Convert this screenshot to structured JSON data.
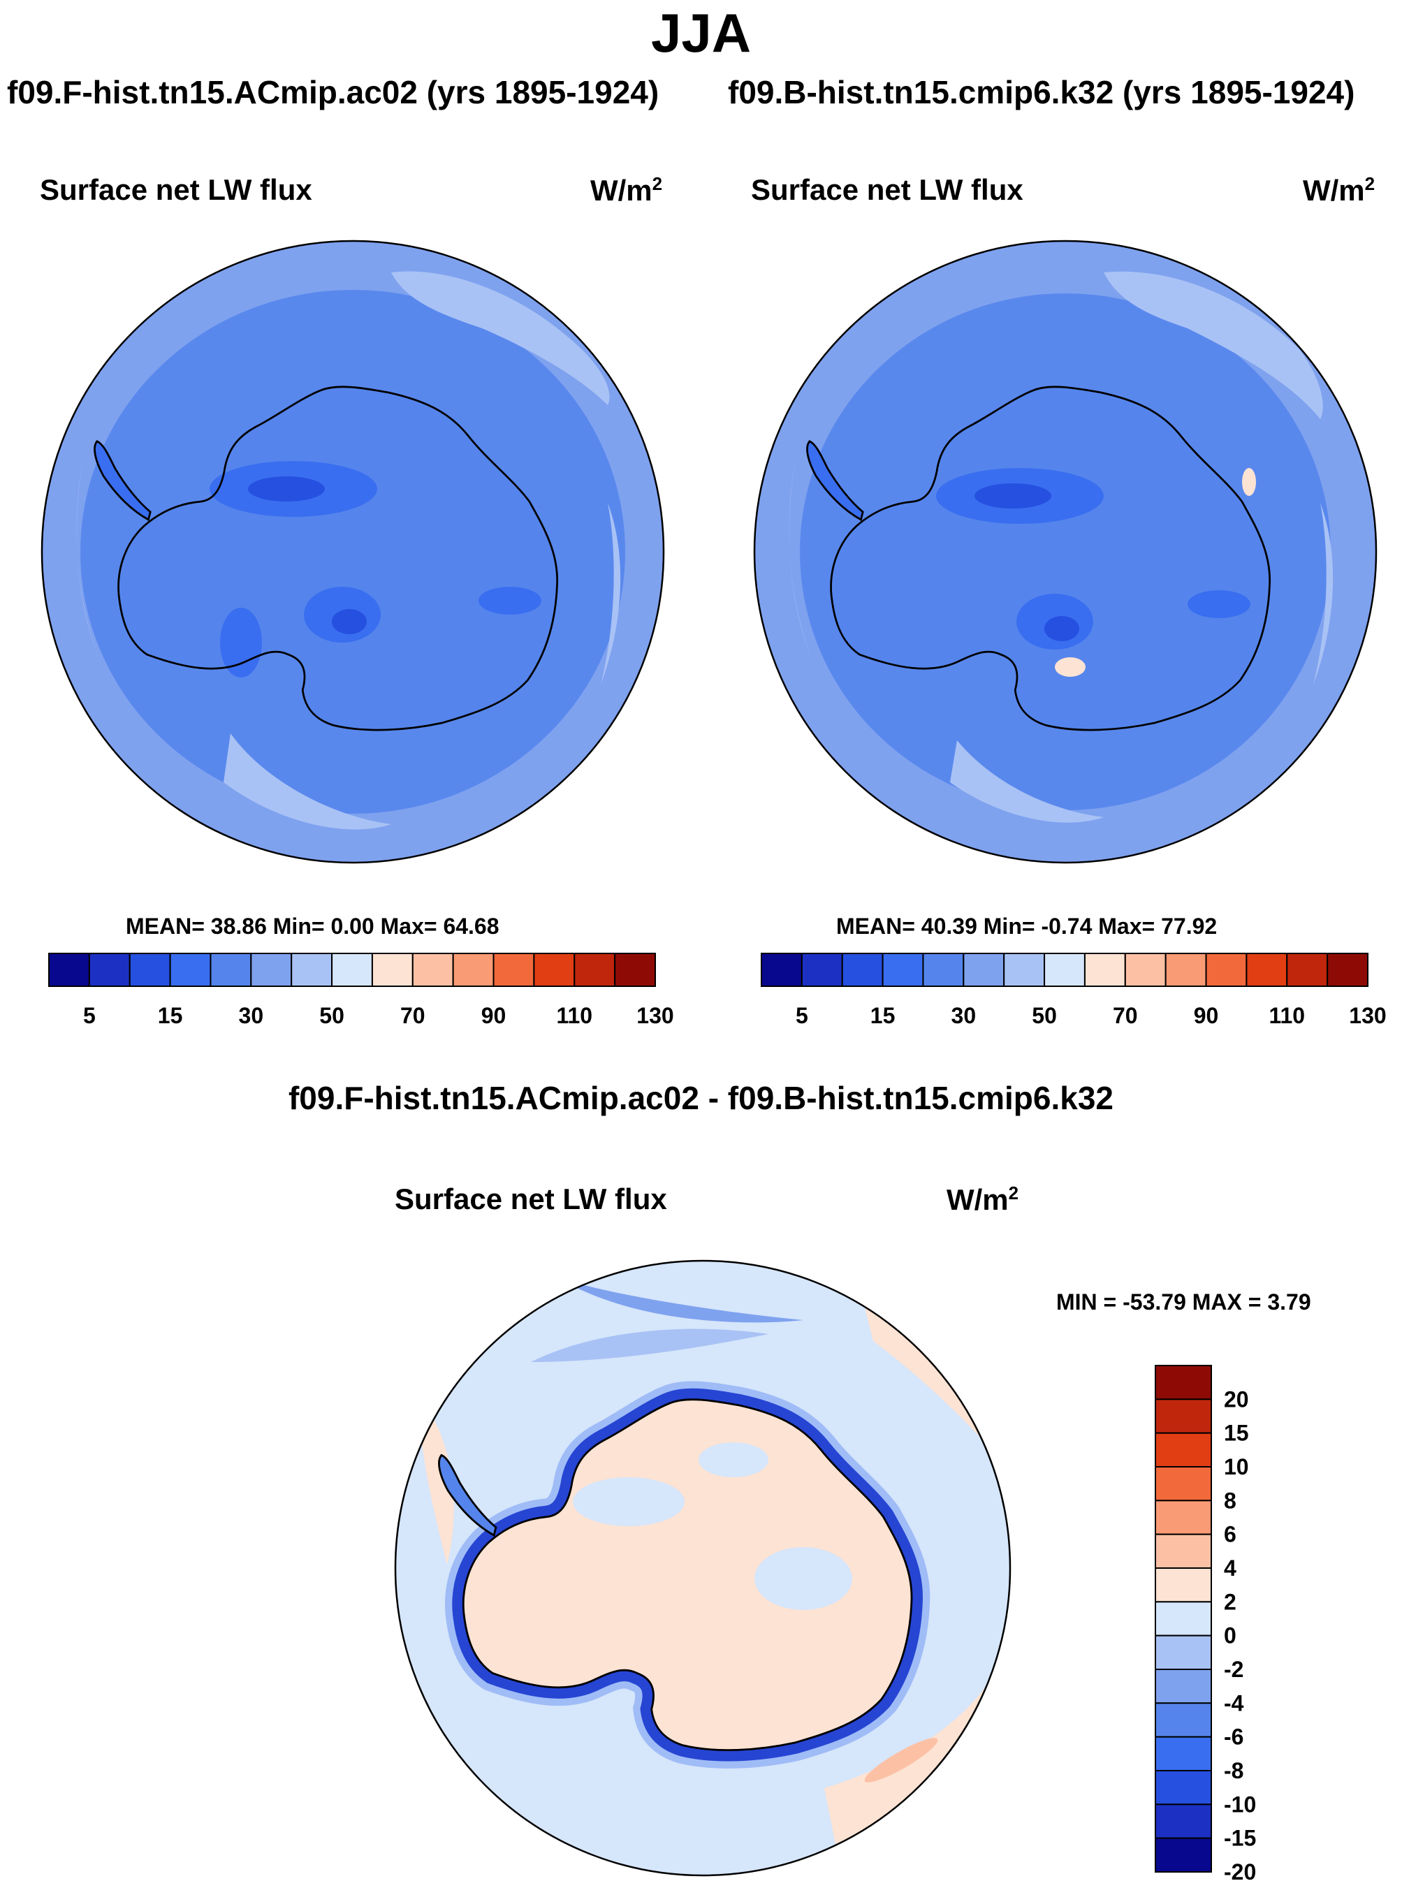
{
  "figure": {
    "season": "JJA",
    "left_run": "f09.F-hist.tn15.ACmip.ac02 (yrs 1895-1924)",
    "right_run": "f09.B-hist.tn15.cmip6.k32 (yrs 1895-1924)",
    "diff_title": "f09.F-hist.tn15.ACmip.ac02 - f09.B-hist.tn15.cmip6.k32"
  },
  "panels": {
    "left": {
      "variable": "Surface net LW flux",
      "units": "W/m",
      "units_exp": "2",
      "stats": "MEAN=  38.86  Min=   0.00  Max=  64.68"
    },
    "right": {
      "variable": "Surface net LW flux",
      "units": "W/m",
      "units_exp": "2",
      "stats": "MEAN=  40.39  Min=  -0.74  Max=  77.92"
    },
    "diff": {
      "variable": "Surface net LW flux",
      "units": "W/m",
      "units_exp": "2",
      "stats": "MIN = -53.79 MAX =   3.79"
    }
  },
  "colors": {
    "abs_scale": [
      "#08088f",
      "#1c31c3",
      "#2550e0",
      "#3a6ef0",
      "#5585ec",
      "#7fa2ef",
      "#a9c2f5",
      "#d6e6fb",
      "#fde3d3",
      "#fcc1a5",
      "#f99b74",
      "#f2693b",
      "#e23e14",
      "#c0260c",
      "#8e0b05"
    ],
    "diff_scale": [
      "#08088f",
      "#1c31c3",
      "#2550e0",
      "#3a6ef0",
      "#5585ec",
      "#7fa2ef",
      "#a9c2f5",
      "#d6e6fb",
      "#fde3d3",
      "#fcc1a5",
      "#f99b74",
      "#f2693b",
      "#e23e14",
      "#c0260c",
      "#8e0b05"
    ],
    "coast": "#000000"
  },
  "chart_data": [
    {
      "type": "heatmap",
      "projection": "south-polar stereographic",
      "title": "Surface net LW flux",
      "subtitle": "f09.F-hist.tn15.ACmip.ac02 (yrs 1895-1924)",
      "units": "W/m^2",
      "mean": 38.86,
      "min": 0.0,
      "max": 64.68,
      "colorbar_levels": [
        5,
        10,
        15,
        20,
        30,
        40,
        50,
        60,
        70,
        80,
        90,
        100,
        110,
        120
      ],
      "colorbar_labels": [
        "5",
        "15",
        "30",
        "50",
        "70",
        "90",
        "110",
        "130"
      ]
    },
    {
      "type": "heatmap",
      "projection": "south-polar stereographic",
      "title": "Surface net LW flux",
      "subtitle": "f09.B-hist.tn15.cmip6.k32 (yrs 1895-1924)",
      "units": "W/m^2",
      "mean": 40.39,
      "min": -0.74,
      "max": 77.92,
      "colorbar_levels": [
        5,
        10,
        15,
        20,
        30,
        40,
        50,
        60,
        70,
        80,
        90,
        100,
        110,
        120
      ],
      "colorbar_labels": [
        "5",
        "15",
        "30",
        "50",
        "70",
        "90",
        "110",
        "130"
      ]
    },
    {
      "type": "heatmap",
      "projection": "south-polar stereographic",
      "title": "Surface net LW flux",
      "subtitle": "f09.F-hist.tn15.ACmip.ac02 - f09.B-hist.tn15.cmip6.k32",
      "units": "W/m^2",
      "min": -53.79,
      "max": 3.79,
      "colorbar_levels": [
        -20,
        -15,
        -10,
        -8,
        -6,
        -4,
        -2,
        0,
        2,
        4,
        6,
        8,
        10,
        15,
        20
      ],
      "colorbar_labels": [
        "20",
        "15",
        "10",
        "8",
        "6",
        "4",
        "2",
        "0",
        "-2",
        "-4",
        "-6",
        "-8",
        "-10",
        "-15",
        "-20"
      ]
    }
  ]
}
